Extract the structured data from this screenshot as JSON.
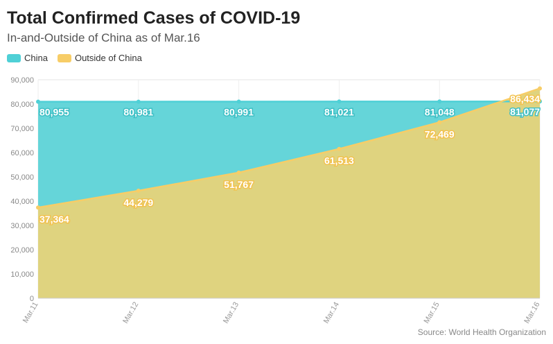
{
  "title": "Total Confirmed Cases of COVID-19",
  "subtitle": "In-and-Outside of China as of Mar.16",
  "source": "Source: World Health Organization",
  "colors": {
    "china": "#4fd0d6",
    "outside": "#f7cd67",
    "outside_fill": "#dfd37f",
    "china_fill": "#65d5d9"
  },
  "chart_data": {
    "type": "area",
    "categories": [
      "Mar.11",
      "Mar.12",
      "Mar.13",
      "Mar.14",
      "Mar.15",
      "Mar.16"
    ],
    "series": [
      {
        "name": "China",
        "values": [
          80955,
          80981,
          80991,
          81021,
          81048,
          81077
        ],
        "labels": [
          "80,955",
          "80,981",
          "80,991",
          "81,021",
          "81,048",
          "81,077"
        ]
      },
      {
        "name": "Outside of China",
        "values": [
          37364,
          44279,
          51767,
          61513,
          72469,
          86434
        ],
        "labels": [
          "37,364",
          "44,279",
          "51,767",
          "61,513",
          "72,469",
          "86,434"
        ]
      }
    ],
    "ylim": [
      0,
      90000
    ],
    "yticks": [
      0,
      10000,
      20000,
      30000,
      40000,
      50000,
      60000,
      70000,
      80000,
      90000
    ],
    "ytick_labels": [
      "0",
      "10,000",
      "20,000",
      "30,000",
      "40,000",
      "50,000",
      "60,000",
      "70,000",
      "80,000",
      "90,000"
    ],
    "grid": true,
    "legend": "top-left"
  }
}
